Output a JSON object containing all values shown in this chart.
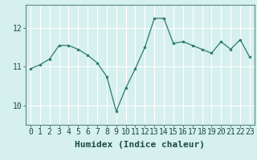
{
  "x": [
    0,
    1,
    2,
    3,
    4,
    5,
    6,
    7,
    8,
    9,
    10,
    11,
    12,
    13,
    14,
    15,
    16,
    17,
    18,
    19,
    20,
    21,
    22,
    23
  ],
  "y": [
    10.95,
    11.05,
    11.2,
    11.55,
    11.55,
    11.45,
    11.3,
    11.1,
    10.75,
    9.85,
    10.45,
    10.95,
    11.5,
    12.25,
    12.25,
    11.6,
    11.65,
    11.55,
    11.45,
    11.35,
    11.65,
    11.45,
    11.7,
    11.25
  ],
  "xlabel": "Humidex (Indice chaleur)",
  "yticks": [
    10,
    11,
    12
  ],
  "xticks": [
    0,
    1,
    2,
    3,
    4,
    5,
    6,
    7,
    8,
    9,
    10,
    11,
    12,
    13,
    14,
    15,
    16,
    17,
    18,
    19,
    20,
    21,
    22,
    23
  ],
  "ylim": [
    9.5,
    12.6
  ],
  "xlim": [
    -0.5,
    23.5
  ],
  "line_color": "#2a7a6e",
  "marker_color": "#2a7a6e",
  "bg_color": "#d6f0ee",
  "grid_color": "#ffffff",
  "axis_color": "#5a8a84",
  "xlabel_fontsize": 8,
  "tick_fontsize": 7
}
